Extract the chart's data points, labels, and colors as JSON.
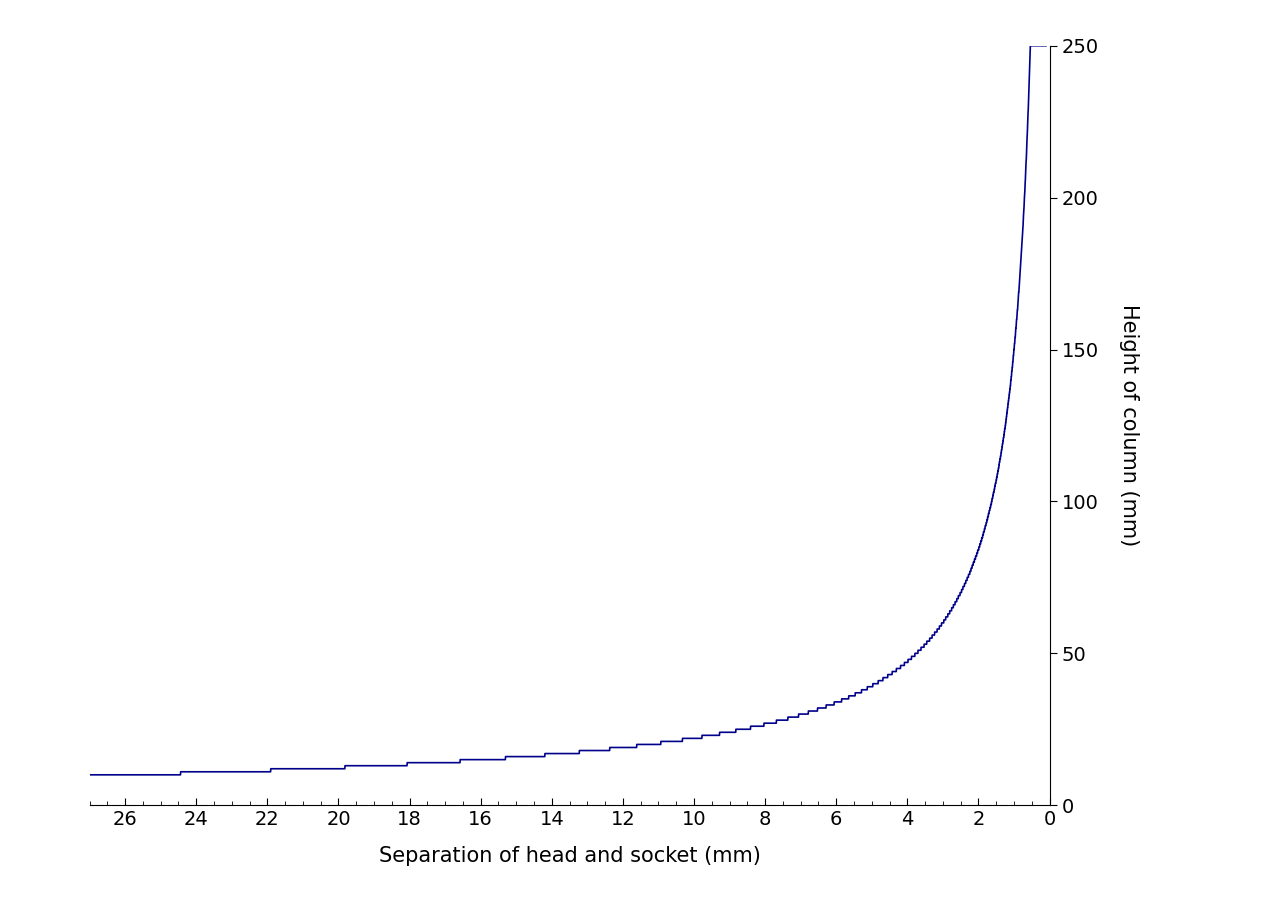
{
  "xlabel": "Separation of head and socket (mm)",
  "ylabel": "Height of column (mm)",
  "line_color": "#00008B",
  "line_width": 1.2,
  "background_color": "#ffffff",
  "xlim": [
    27,
    0
  ],
  "ylim": [
    0,
    250
  ],
  "xticks": [
    26,
    24,
    22,
    20,
    18,
    16,
    14,
    12,
    10,
    8,
    6,
    4,
    2,
    0
  ],
  "yticks": [
    0,
    50,
    100,
    150,
    200,
    250
  ],
  "xlabel_fontsize": 15,
  "ylabel_fontsize": 15,
  "tick_fontsize": 14,
  "figsize": [
    12.8,
    9.15
  ],
  "dpi": 100,
  "spine_linewidth": 0.8,
  "curve_A": 5.5,
  "curve_p": 1.85,
  "num_points": 5000
}
